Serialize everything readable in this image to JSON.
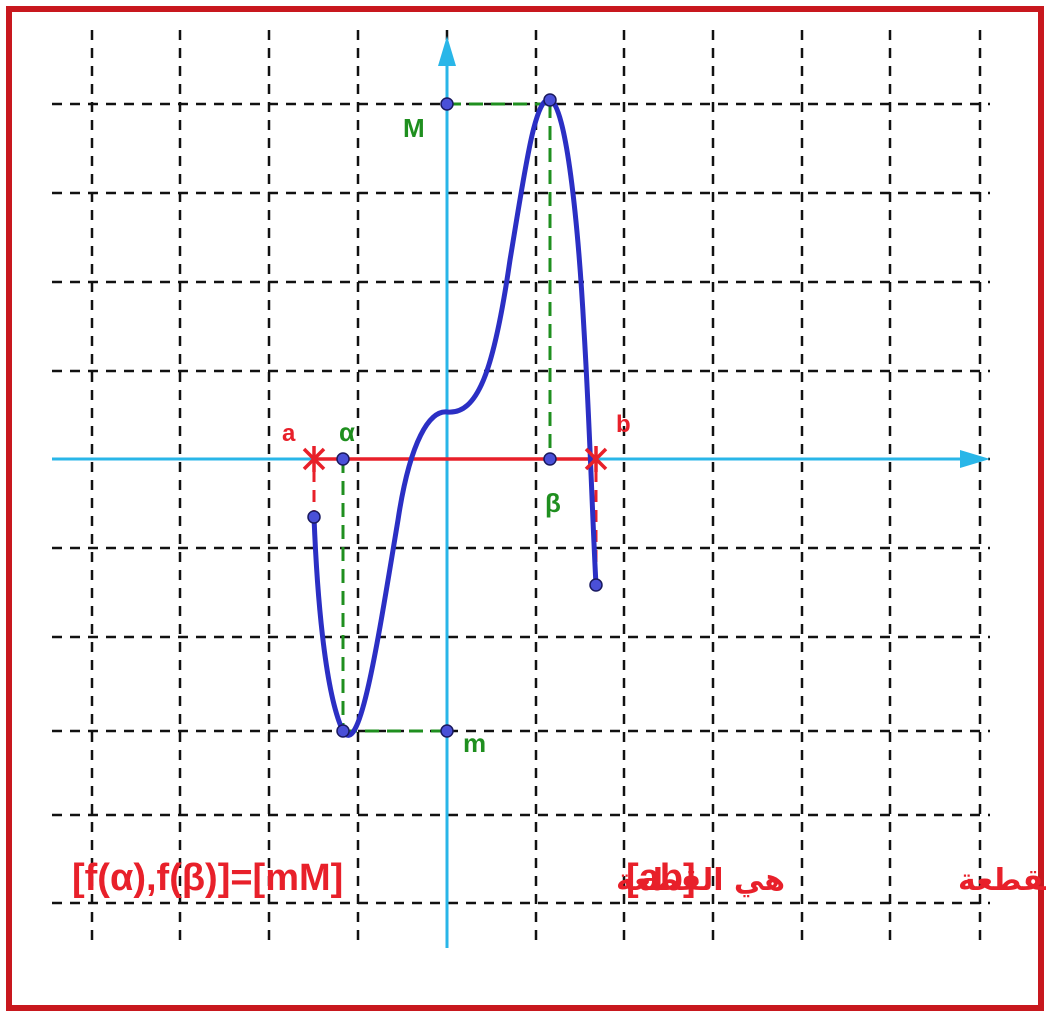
{
  "figure": {
    "description_labels": {
      "a": "a",
      "b": "b",
      "alpha": "α",
      "beta": "β",
      "M": "M",
      "m": "m"
    },
    "caption": {
      "part1": "صورة القطعة",
      "part2": "[ab]",
      "part3": "هي القطعة",
      "part4": "[f(α),f(β)]=[mM]"
    },
    "colors": {
      "frame": "#c8181e",
      "grid": "#111111",
      "axes": "#29b6e8",
      "curve": "#2b2fc4",
      "segment": "#e8202a",
      "guides": "#1f8f1f",
      "labels_red": "#e8202a",
      "labels_green": "#1f8f1f"
    }
  }
}
